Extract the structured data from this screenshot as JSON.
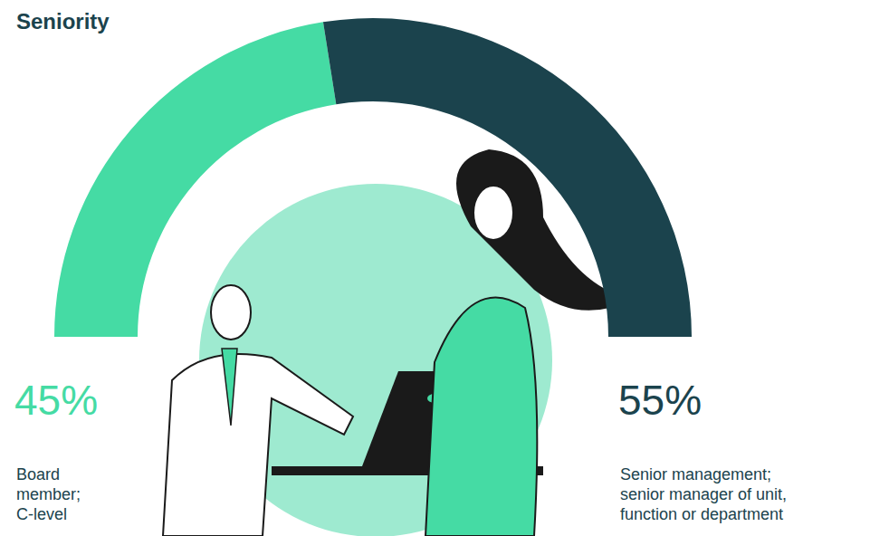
{
  "chart_data": {
    "type": "pie",
    "title": "Seniority",
    "categories": [
      "Board member; C-level",
      "Senior management; senior manager of unit, function or department"
    ],
    "values": [
      45,
      55
    ],
    "value_labels": [
      "45%",
      "55%"
    ],
    "colors": [
      "#45dba4",
      "#1b434d"
    ],
    "data_labels": true
  }
}
